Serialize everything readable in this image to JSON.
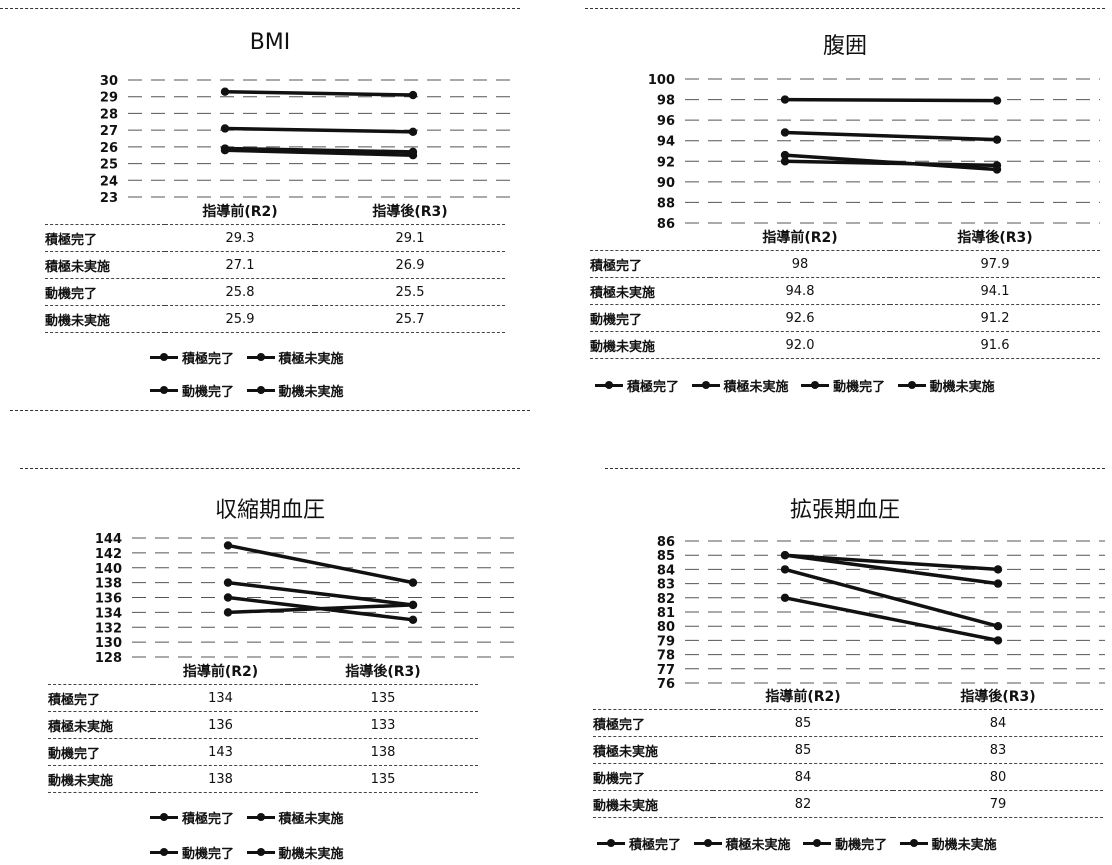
{
  "columns": [
    "指導前(R2)",
    "指導後(R3)"
  ],
  "legend": [
    "積極完了",
    "積極未実施",
    "動機完了",
    "動機未実施"
  ],
  "chart_data": [
    {
      "type": "line",
      "title": "BMI",
      "categories": [
        "指導前(R2)",
        "指導後(R3)"
      ],
      "ylim": [
        23,
        30
      ],
      "yticks": [
        23,
        24,
        25,
        26,
        27,
        28,
        29,
        30
      ],
      "series": [
        {
          "name": "積極完了",
          "values": [
            29.3,
            29.1
          ],
          "labels": [
            "29.3",
            "29.1"
          ]
        },
        {
          "name": "積極未実施",
          "values": [
            27.1,
            26.9
          ],
          "labels": [
            "27.1",
            "26.9"
          ]
        },
        {
          "name": "動機完了",
          "values": [
            25.8,
            25.5
          ],
          "labels": [
            "25.8",
            "25.5"
          ]
        },
        {
          "name": "動機未実施",
          "values": [
            25.9,
            25.7
          ],
          "labels": [
            "25.9",
            "25.7"
          ]
        }
      ]
    },
    {
      "type": "line",
      "title": "腹囲",
      "categories": [
        "指導前(R2)",
        "指導後(R3)"
      ],
      "ylim": [
        86,
        100
      ],
      "yticks": [
        86,
        88,
        90,
        92,
        94,
        96,
        98,
        100
      ],
      "series": [
        {
          "name": "積極完了",
          "values": [
            98,
            97.9
          ],
          "labels": [
            "98",
            "97.9"
          ]
        },
        {
          "name": "積極未実施",
          "values": [
            94.8,
            94.1
          ],
          "labels": [
            "94.8",
            "94.1"
          ]
        },
        {
          "name": "動機完了",
          "values": [
            92.6,
            91.2
          ],
          "labels": [
            "92.6",
            "91.2"
          ]
        },
        {
          "name": "動機未実施",
          "values": [
            92.0,
            91.6
          ],
          "labels": [
            "92.0",
            "91.6"
          ]
        }
      ]
    },
    {
      "type": "line",
      "title": "収縮期血圧",
      "categories": [
        "指導前(R2)",
        "指導後(R3)"
      ],
      "ylim": [
        128,
        144
      ],
      "yticks": [
        128,
        130,
        132,
        134,
        136,
        138,
        140,
        142,
        144
      ],
      "series": [
        {
          "name": "積極完了",
          "values": [
            134,
            135
          ],
          "labels": [
            "134",
            "135"
          ]
        },
        {
          "name": "積極未実施",
          "values": [
            136,
            133
          ],
          "labels": [
            "136",
            "133"
          ]
        },
        {
          "name": "動機完了",
          "values": [
            143,
            138
          ],
          "labels": [
            "143",
            "138"
          ]
        },
        {
          "name": "動機未実施",
          "values": [
            138,
            135
          ],
          "labels": [
            "138",
            "135"
          ]
        }
      ]
    },
    {
      "type": "line",
      "title": "拡張期血圧",
      "categories": [
        "指導前(R2)",
        "指導後(R3)"
      ],
      "ylim": [
        76,
        86
      ],
      "yticks": [
        76,
        77,
        78,
        79,
        80,
        81,
        82,
        83,
        84,
        85,
        86
      ],
      "series": [
        {
          "name": "積極完了",
          "values": [
            85,
            84
          ],
          "labels": [
            "85",
            "84"
          ]
        },
        {
          "name": "積極未実施",
          "values": [
            85,
            83
          ],
          "labels": [
            "85",
            "83"
          ]
        },
        {
          "name": "動機完了",
          "values": [
            84,
            80
          ],
          "labels": [
            "84",
            "80"
          ]
        },
        {
          "name": "動機未実施",
          "values": [
            82,
            79
          ],
          "labels": [
            "82",
            "79"
          ]
        }
      ]
    }
  ]
}
